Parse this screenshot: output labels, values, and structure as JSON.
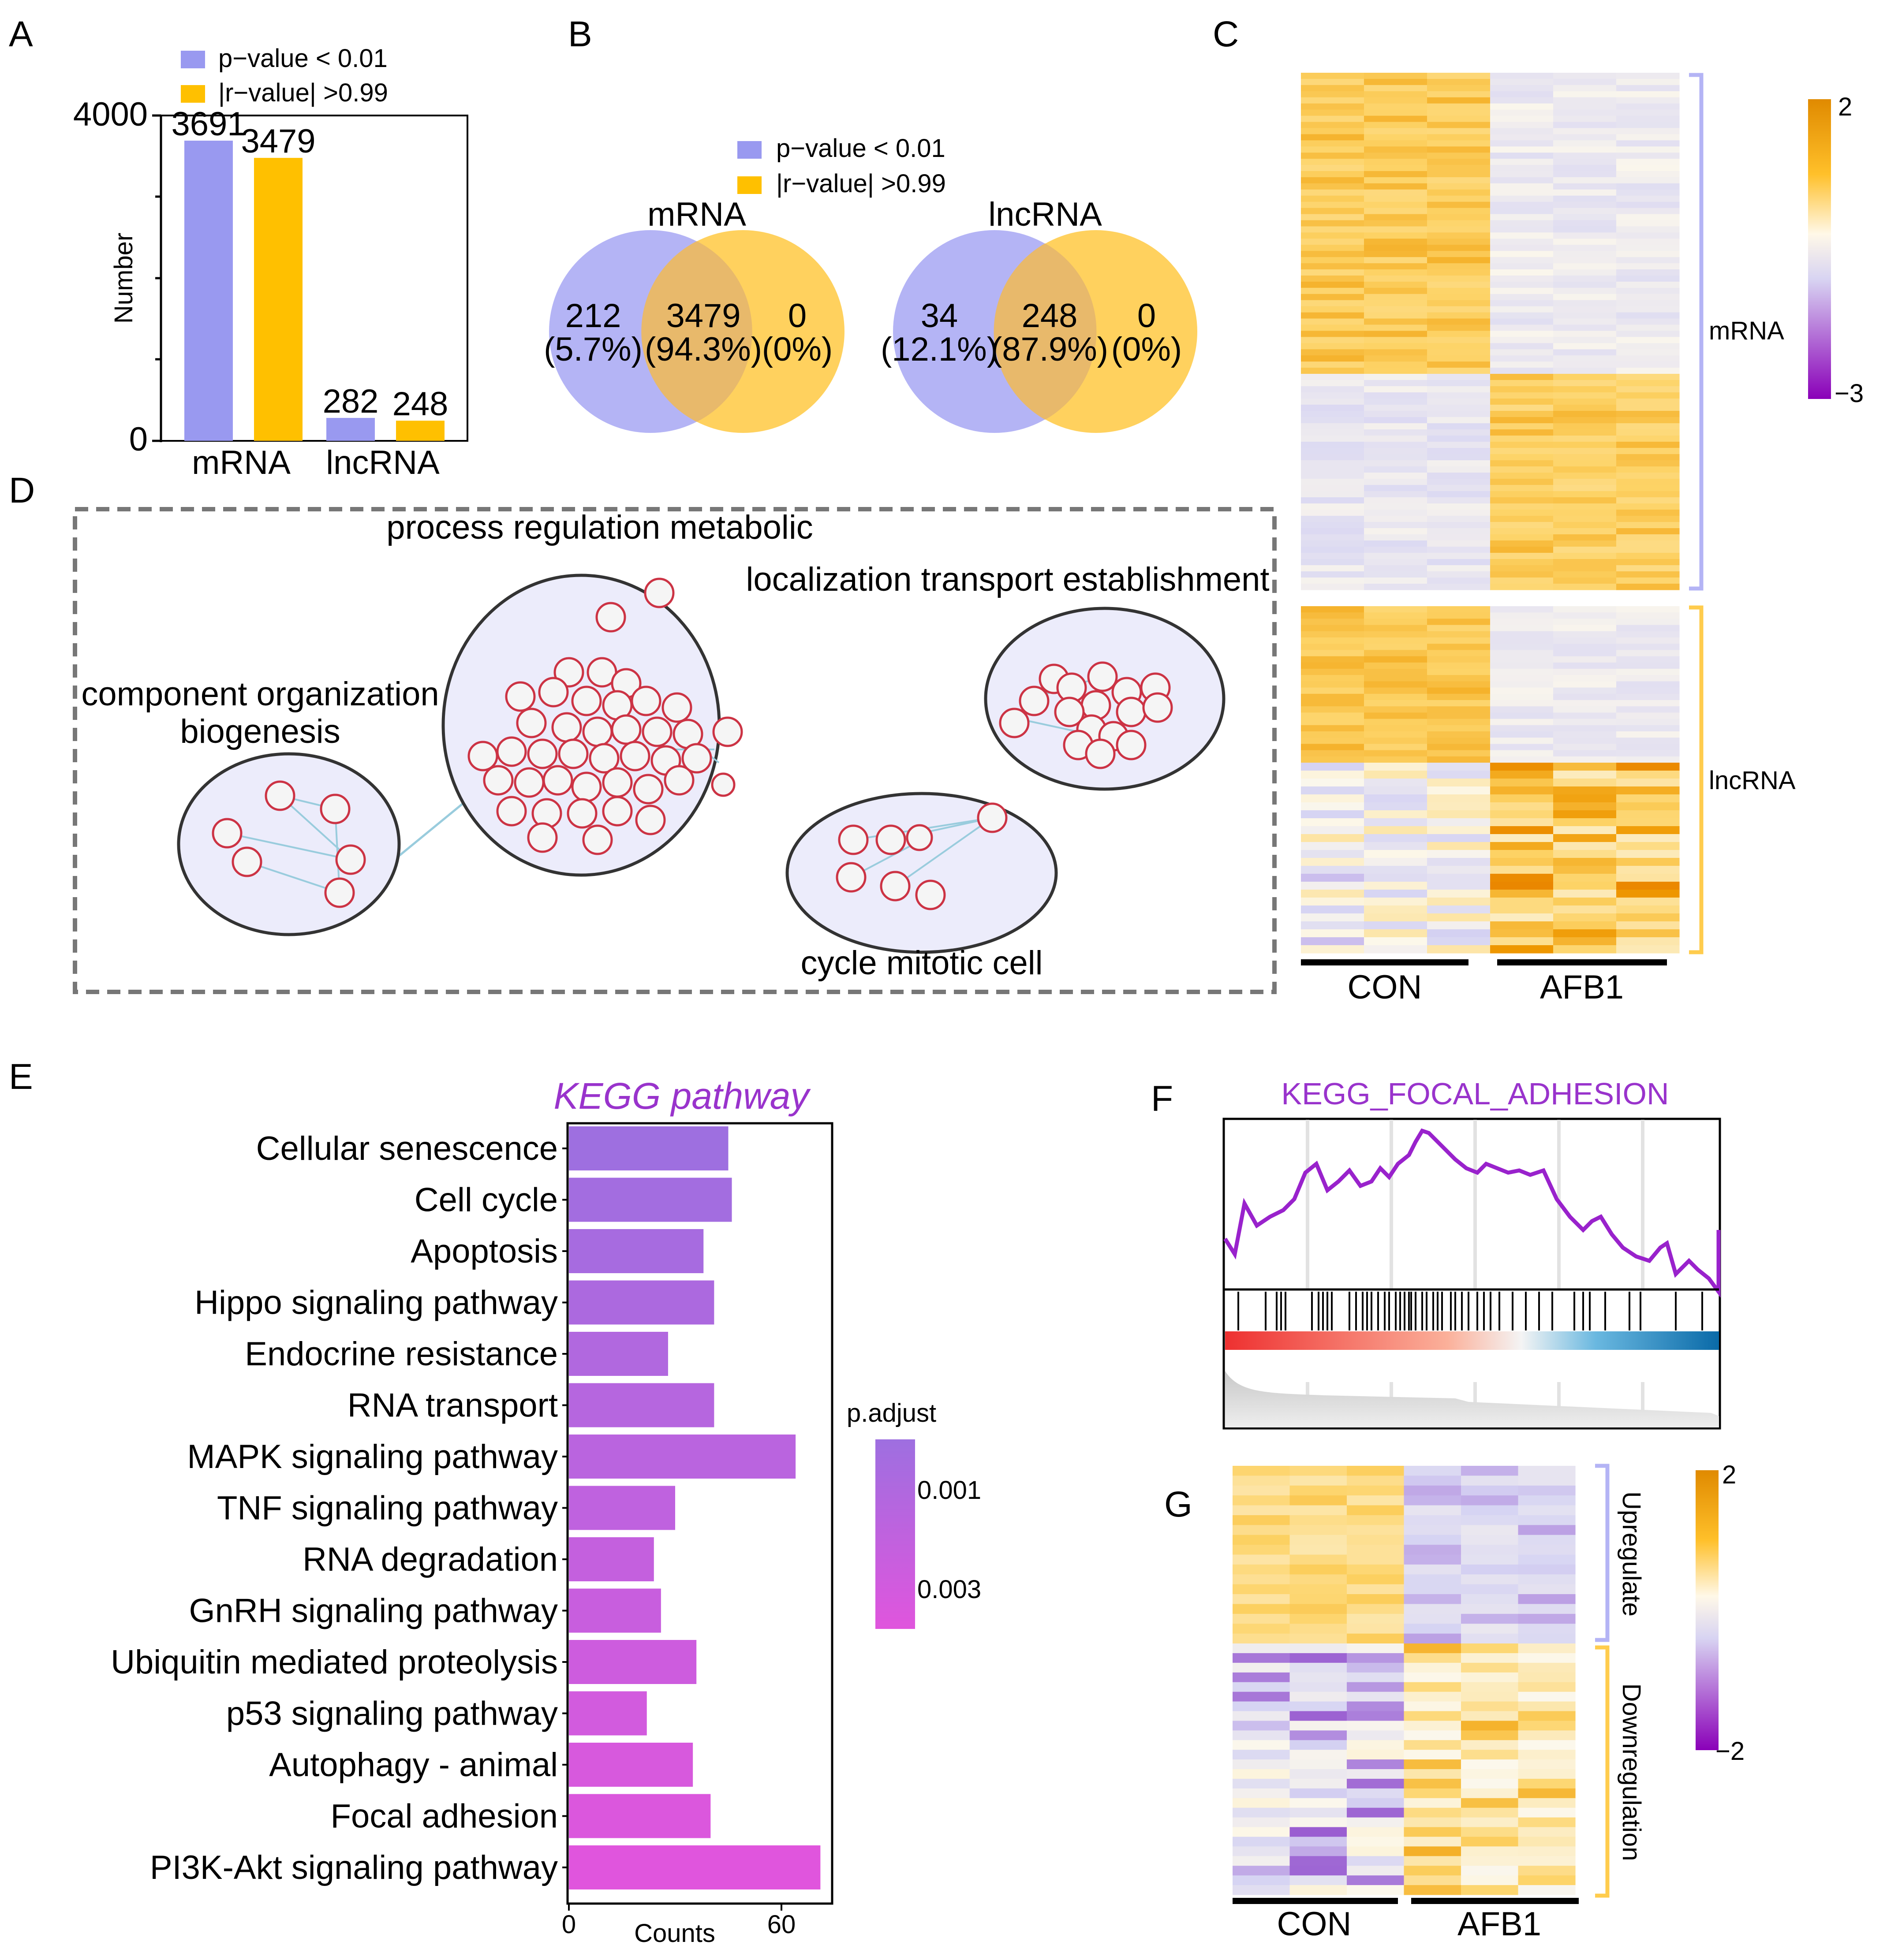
{
  "colors": {
    "purple": "#9999f0",
    "yellow": "#ffc000",
    "venn_purple": "#b4b4f5",
    "venn_yellow": "#ffcc4d",
    "kegg_title": "#9933cc",
    "network_bg": "#ececfb",
    "node_stroke": "#cc3344",
    "edge": "#99ccdd"
  },
  "panels": {
    "a": "A",
    "b": "B",
    "c": "C",
    "d": "D",
    "e": "E",
    "f": "F",
    "g": "G"
  },
  "chart_data": [
    {
      "id": "A",
      "type": "bar",
      "categories": [
        "mRNA",
        "lncRNA"
      ],
      "series": [
        {
          "name": "p−value < 0.01",
          "color": "#9999f0",
          "values": [
            3691,
            282
          ]
        },
        {
          "name": "|r−value| >0.99",
          "color": "#ffc000",
          "values": [
            3479,
            248
          ]
        }
      ],
      "ylabel": "Number",
      "ylim": [
        0,
        4000
      ],
      "yticks": [
        "0",
        "4000"
      ]
    },
    {
      "id": "B",
      "type": "venn",
      "legend": [
        "p−value < 0.01",
        "|r−value| >0.99"
      ],
      "sets": [
        {
          "title": "mRNA",
          "left": [
            "212",
            "(5.7%)"
          ],
          "mid": [
            "3479",
            "(94.3%)"
          ],
          "right": [
            "0",
            "(0%)"
          ]
        },
        {
          "title": "lncRNA",
          "left": [
            "34",
            "(12.1%)"
          ],
          "mid": [
            "248",
            "(87.9%)"
          ],
          "right": [
            "0",
            "(0%)"
          ]
        }
      ]
    },
    {
      "id": "C",
      "type": "heatmap",
      "groups": [
        "CON",
        "AFB1"
      ],
      "row_groups": [
        "mRNA",
        "lncRNA"
      ],
      "scale": {
        "max": "2",
        "min": "−3"
      }
    },
    {
      "id": "D",
      "type": "network",
      "clusters": [
        "process regulation metabolic",
        "localization transport establishment",
        "component organization",
        "biogenesis",
        "cycle mitotic cell"
      ]
    },
    {
      "id": "E",
      "type": "bar",
      "orientation": "horizontal",
      "title": "KEGG  pathway",
      "xlabel": "Counts",
      "xticks": [
        0,
        60
      ],
      "xlim": [
        0,
        75
      ],
      "legend_title": "p.adjust",
      "legend_ticks": [
        "0.001",
        "0.003"
      ],
      "categories": [
        "Cellular senescence",
        "Cell cycle",
        "Apoptosis",
        "Hippo signaling pathway",
        "Endocrine resistance",
        "RNA transport",
        "MAPK signaling pathway",
        "TNF signaling pathway",
        "RNA degradation",
        "GnRH signaling pathway",
        "Ubiquitin mediated proteolysis",
        "p53 signaling pathway",
        "Autophagy - animal",
        "Focal adhesion",
        "PI3K-Akt signaling pathway"
      ],
      "values": [
        45,
        46,
        38,
        41,
        28,
        41,
        64,
        30,
        24,
        26,
        36,
        22,
        35,
        40,
        71
      ]
    },
    {
      "id": "F",
      "type": "line",
      "title": "KEGG_FOCAL_ADHESION"
    },
    {
      "id": "G",
      "type": "heatmap",
      "groups": [
        "CON",
        "AFB1"
      ],
      "row_groups": [
        "Upregulate",
        "Downregulation"
      ],
      "scale": {
        "max": "2",
        "min": "−2"
      }
    }
  ]
}
